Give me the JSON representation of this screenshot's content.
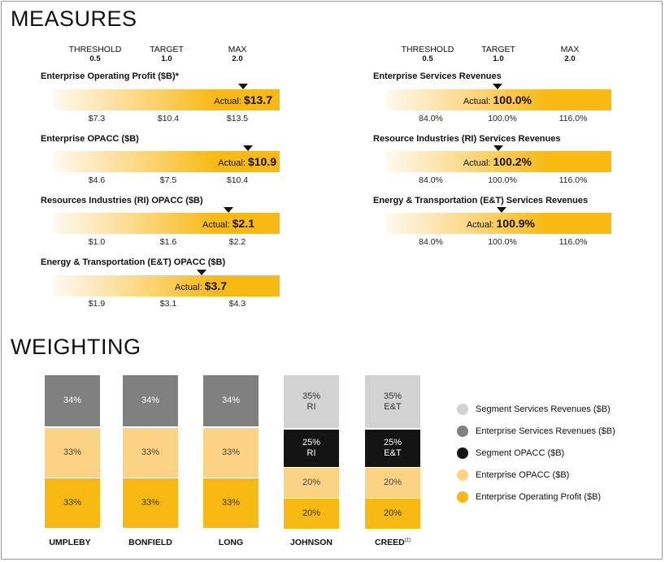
{
  "measures": {
    "title": "MEASURES",
    "headers": [
      {
        "label": "THRESHOLD",
        "value": "0.5"
      },
      {
        "label": "TARGET",
        "value": "1.0"
      },
      {
        "label": "MAX",
        "value": "2.0"
      }
    ],
    "left": [
      {
        "title": "Enterprise Operating Profit ($B)*",
        "actual_label": "Actual:",
        "actual": "$13.7",
        "ticks": [
          "$7.3",
          "$10.4",
          "$13.5"
        ]
      },
      {
        "title": "Enterprise OPACC ($B)",
        "actual_label": "Actual:",
        "actual": "$10.9",
        "ticks": [
          "$4.6",
          "$7.5",
          "$10.4"
        ]
      },
      {
        "title": "Resources Industries (RI) OPACC ($B)",
        "actual_label": "Actual:",
        "actual": "$2.1",
        "ticks": [
          "$1.0",
          "$1.6",
          "$2.2"
        ]
      },
      {
        "title": "Energy & Transportation (E&T) OPACC ($B)",
        "actual_label": "Actual:",
        "actual": "$3.7",
        "ticks": [
          "$1.9",
          "$3.1",
          "$4.3"
        ]
      }
    ],
    "right": [
      {
        "title": "Enterprise Services Revenues",
        "actual_label": "Actual:",
        "actual": "100.0%",
        "ticks": [
          "84.0%",
          "100.0%",
          "116.0%"
        ]
      },
      {
        "title": "Resource Industries (RI) Services Revenues",
        "actual_label": "Actual:",
        "actual": "100.2%",
        "ticks": [
          "84.0%",
          "100.0%",
          "116.0%"
        ]
      },
      {
        "title": "Energy & Transportation (E&T) Services Revenues",
        "actual_label": "Actual:",
        "actual": "100.9%",
        "ticks": [
          "84.0%",
          "100.0%",
          "116.0%"
        ]
      }
    ]
  },
  "weighting": {
    "title": "WEIGHTING",
    "names": [
      "UMPLEBY",
      "BONFIELD",
      "LONG",
      "JOHNSON",
      "CREED"
    ],
    "creed_footnote": "(1)",
    "legend": [
      "Segment Services Revenues ($B)",
      "Enterprise Services Revenues ($B)",
      "Segment OPACC ($B)",
      "Enterprise OPACC ($B)",
      "Enterprise Operating Profit ($B)"
    ]
  },
  "colors": {
    "segment_services": "#d2d2d2",
    "enterprise_services": "#808080",
    "segment_opacc": "#141414",
    "enterprise_opacc": "#fbd382",
    "enterprise_op": "#f8b912"
  },
  "chart_data": [
    {
      "type": "bar",
      "title": "Enterprise Operating Profit ($B)*",
      "scale": [
        "THRESHOLD 0.5",
        "TARGET 1.0",
        "MAX 2.0"
      ],
      "thresholds": [
        7.3,
        10.4,
        13.5
      ],
      "actual": 13.7
    },
    {
      "type": "bar",
      "title": "Enterprise OPACC ($B)",
      "thresholds": [
        4.6,
        7.5,
        10.4
      ],
      "actual": 10.9
    },
    {
      "type": "bar",
      "title": "Resources Industries (RI) OPACC ($B)",
      "thresholds": [
        1.0,
        1.6,
        2.2
      ],
      "actual": 2.1
    },
    {
      "type": "bar",
      "title": "Energy & Transportation (E&T) OPACC ($B)",
      "thresholds": [
        1.9,
        3.1,
        4.3
      ],
      "actual": 3.7
    },
    {
      "type": "bar",
      "title": "Enterprise Services Revenues",
      "thresholds": [
        84.0,
        100.0,
        116.0
      ],
      "actual": 100.0
    },
    {
      "type": "bar",
      "title": "Resource Industries (RI) Services Revenues",
      "thresholds": [
        84.0,
        100.0,
        116.0
      ],
      "actual": 100.2
    },
    {
      "type": "bar",
      "title": "Energy & Transportation (E&T) Services Revenues",
      "thresholds": [
        84.0,
        100.0,
        116.0
      ],
      "actual": 100.9
    },
    {
      "type": "bar",
      "title": "WEIGHTING",
      "stacked": true,
      "categories": [
        "UMPLEBY",
        "BONFIELD",
        "LONG",
        "JOHNSON",
        "CREED"
      ],
      "series": [
        {
          "name": "Enterprise Operating Profit ($B)",
          "color_key": "enterprise_op",
          "values": [
            33,
            33,
            33,
            20,
            20
          ],
          "labels": [
            "33%",
            "33%",
            "33%",
            "20%",
            "20%"
          ],
          "sublabels": [
            "",
            "",
            "",
            "",
            ""
          ]
        },
        {
          "name": "Enterprise OPACC ($B)",
          "color_key": "enterprise_opacc",
          "values": [
            33,
            33,
            33,
            20,
            20
          ],
          "labels": [
            "33%",
            "33%",
            "33%",
            "20%",
            "20%"
          ],
          "sublabels": [
            "",
            "",
            "",
            "",
            ""
          ]
        },
        {
          "name": "Segment OPACC ($B)",
          "color_key": "segment_opacc",
          "values": [
            0,
            0,
            0,
            25,
            25
          ],
          "labels": [
            "",
            "",
            "",
            "25%",
            "25%"
          ],
          "sublabels": [
            "",
            "",
            "",
            "RI",
            "E&T"
          ]
        },
        {
          "name": "Enterprise Services Revenues ($B)",
          "color_key": "enterprise_services",
          "values": [
            34,
            34,
            34,
            0,
            0
          ],
          "labels": [
            "34%",
            "34%",
            "34%",
            "",
            ""
          ],
          "sublabels": [
            "",
            "",
            "",
            "",
            ""
          ]
        },
        {
          "name": "Segment Services Revenues ($B)",
          "color_key": "segment_services",
          "values": [
            0,
            0,
            0,
            35,
            35
          ],
          "labels": [
            "",
            "",
            "",
            "35%",
            "35%"
          ],
          "sublabels": [
            "",
            "",
            "",
            "RI",
            "E&T"
          ]
        }
      ]
    }
  ]
}
